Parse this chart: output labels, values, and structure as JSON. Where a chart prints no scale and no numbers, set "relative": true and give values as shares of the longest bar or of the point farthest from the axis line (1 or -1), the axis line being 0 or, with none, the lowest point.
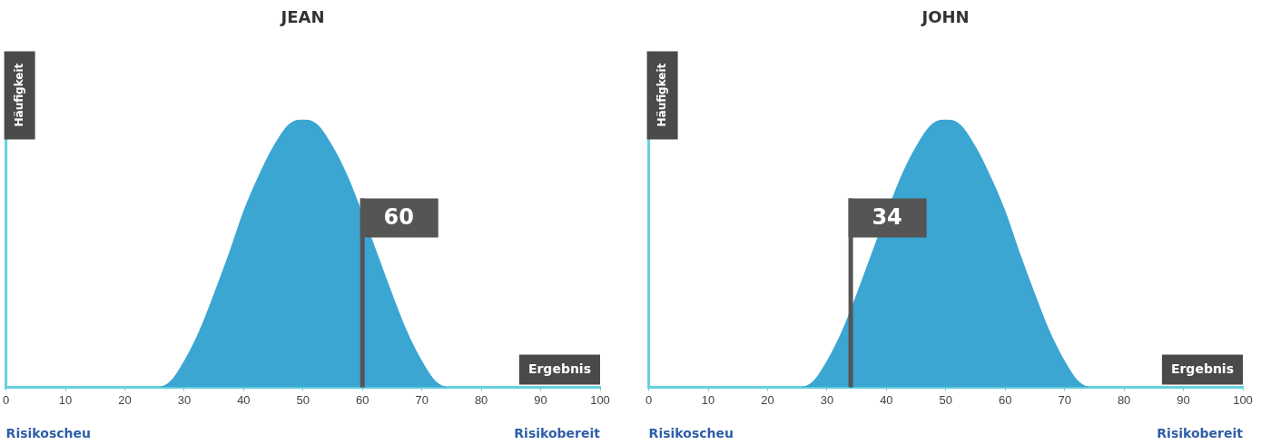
{
  "chart_data": [
    {
      "type": "area",
      "title": "JEAN",
      "xlabel": "Ergebnis",
      "ylabel": "Häufigkeit",
      "relative": true,
      "x": [
        0,
        25,
        27.5,
        30,
        32.5,
        35,
        37.5,
        40,
        42.5,
        45,
        47.5,
        50,
        52.5,
        55,
        57.5,
        62.5,
        65,
        67.5,
        70,
        72.5,
        75,
        100
      ],
      "series": [
        {
          "color": "#3ba6d2",
          "values": [
            0,
            0,
            0.02,
            0.1,
            0.21,
            0.35,
            0.5,
            0.66,
            0.79,
            0.9,
            0.98,
            1,
            0.98,
            0.9,
            0.79,
            0.5,
            0.35,
            0.21,
            0.1,
            0.02,
            0,
            0
          ]
        }
      ],
      "xlim": [
        0,
        100
      ],
      "xticks": [
        0,
        10,
        20,
        30,
        40,
        50,
        60,
        70,
        80,
        90,
        100
      ],
      "ref_lines": [
        {
          "axis": "x",
          "value": 60,
          "label": "60",
          "color": "#555555"
        }
      ],
      "annotations": [
        "Risikoscheu",
        "Risikobereit"
      ]
    },
    {
      "type": "area",
      "title": "JOHN",
      "xlabel": "Ergebnis",
      "ylabel": "Häufigkeit",
      "relative": true,
      "x": [
        0,
        25,
        27.5,
        30,
        32.5,
        35,
        37.5,
        42.5,
        45,
        47.5,
        50,
        52.5,
        55,
        57.5,
        60,
        62.5,
        65,
        67.5,
        70,
        72.5,
        75,
        100
      ],
      "series": [
        {
          "color": "#3ba6d2",
          "values": [
            0,
            0,
            0.02,
            0.1,
            0.21,
            0.35,
            0.5,
            0.79,
            0.9,
            0.98,
            1,
            0.98,
            0.9,
            0.79,
            0.66,
            0.5,
            0.35,
            0.21,
            0.1,
            0.02,
            0,
            0
          ]
        }
      ],
      "xlim": [
        0,
        100
      ],
      "xticks": [
        0,
        10,
        20,
        30,
        40,
        50,
        60,
        70,
        80,
        90,
        100
      ],
      "ref_lines": [
        {
          "axis": "x",
          "value": 34,
          "label": "34",
          "color": "#555555"
        }
      ],
      "annotations": [
        "Risikoscheu",
        "Risikobereit"
      ]
    }
  ]
}
